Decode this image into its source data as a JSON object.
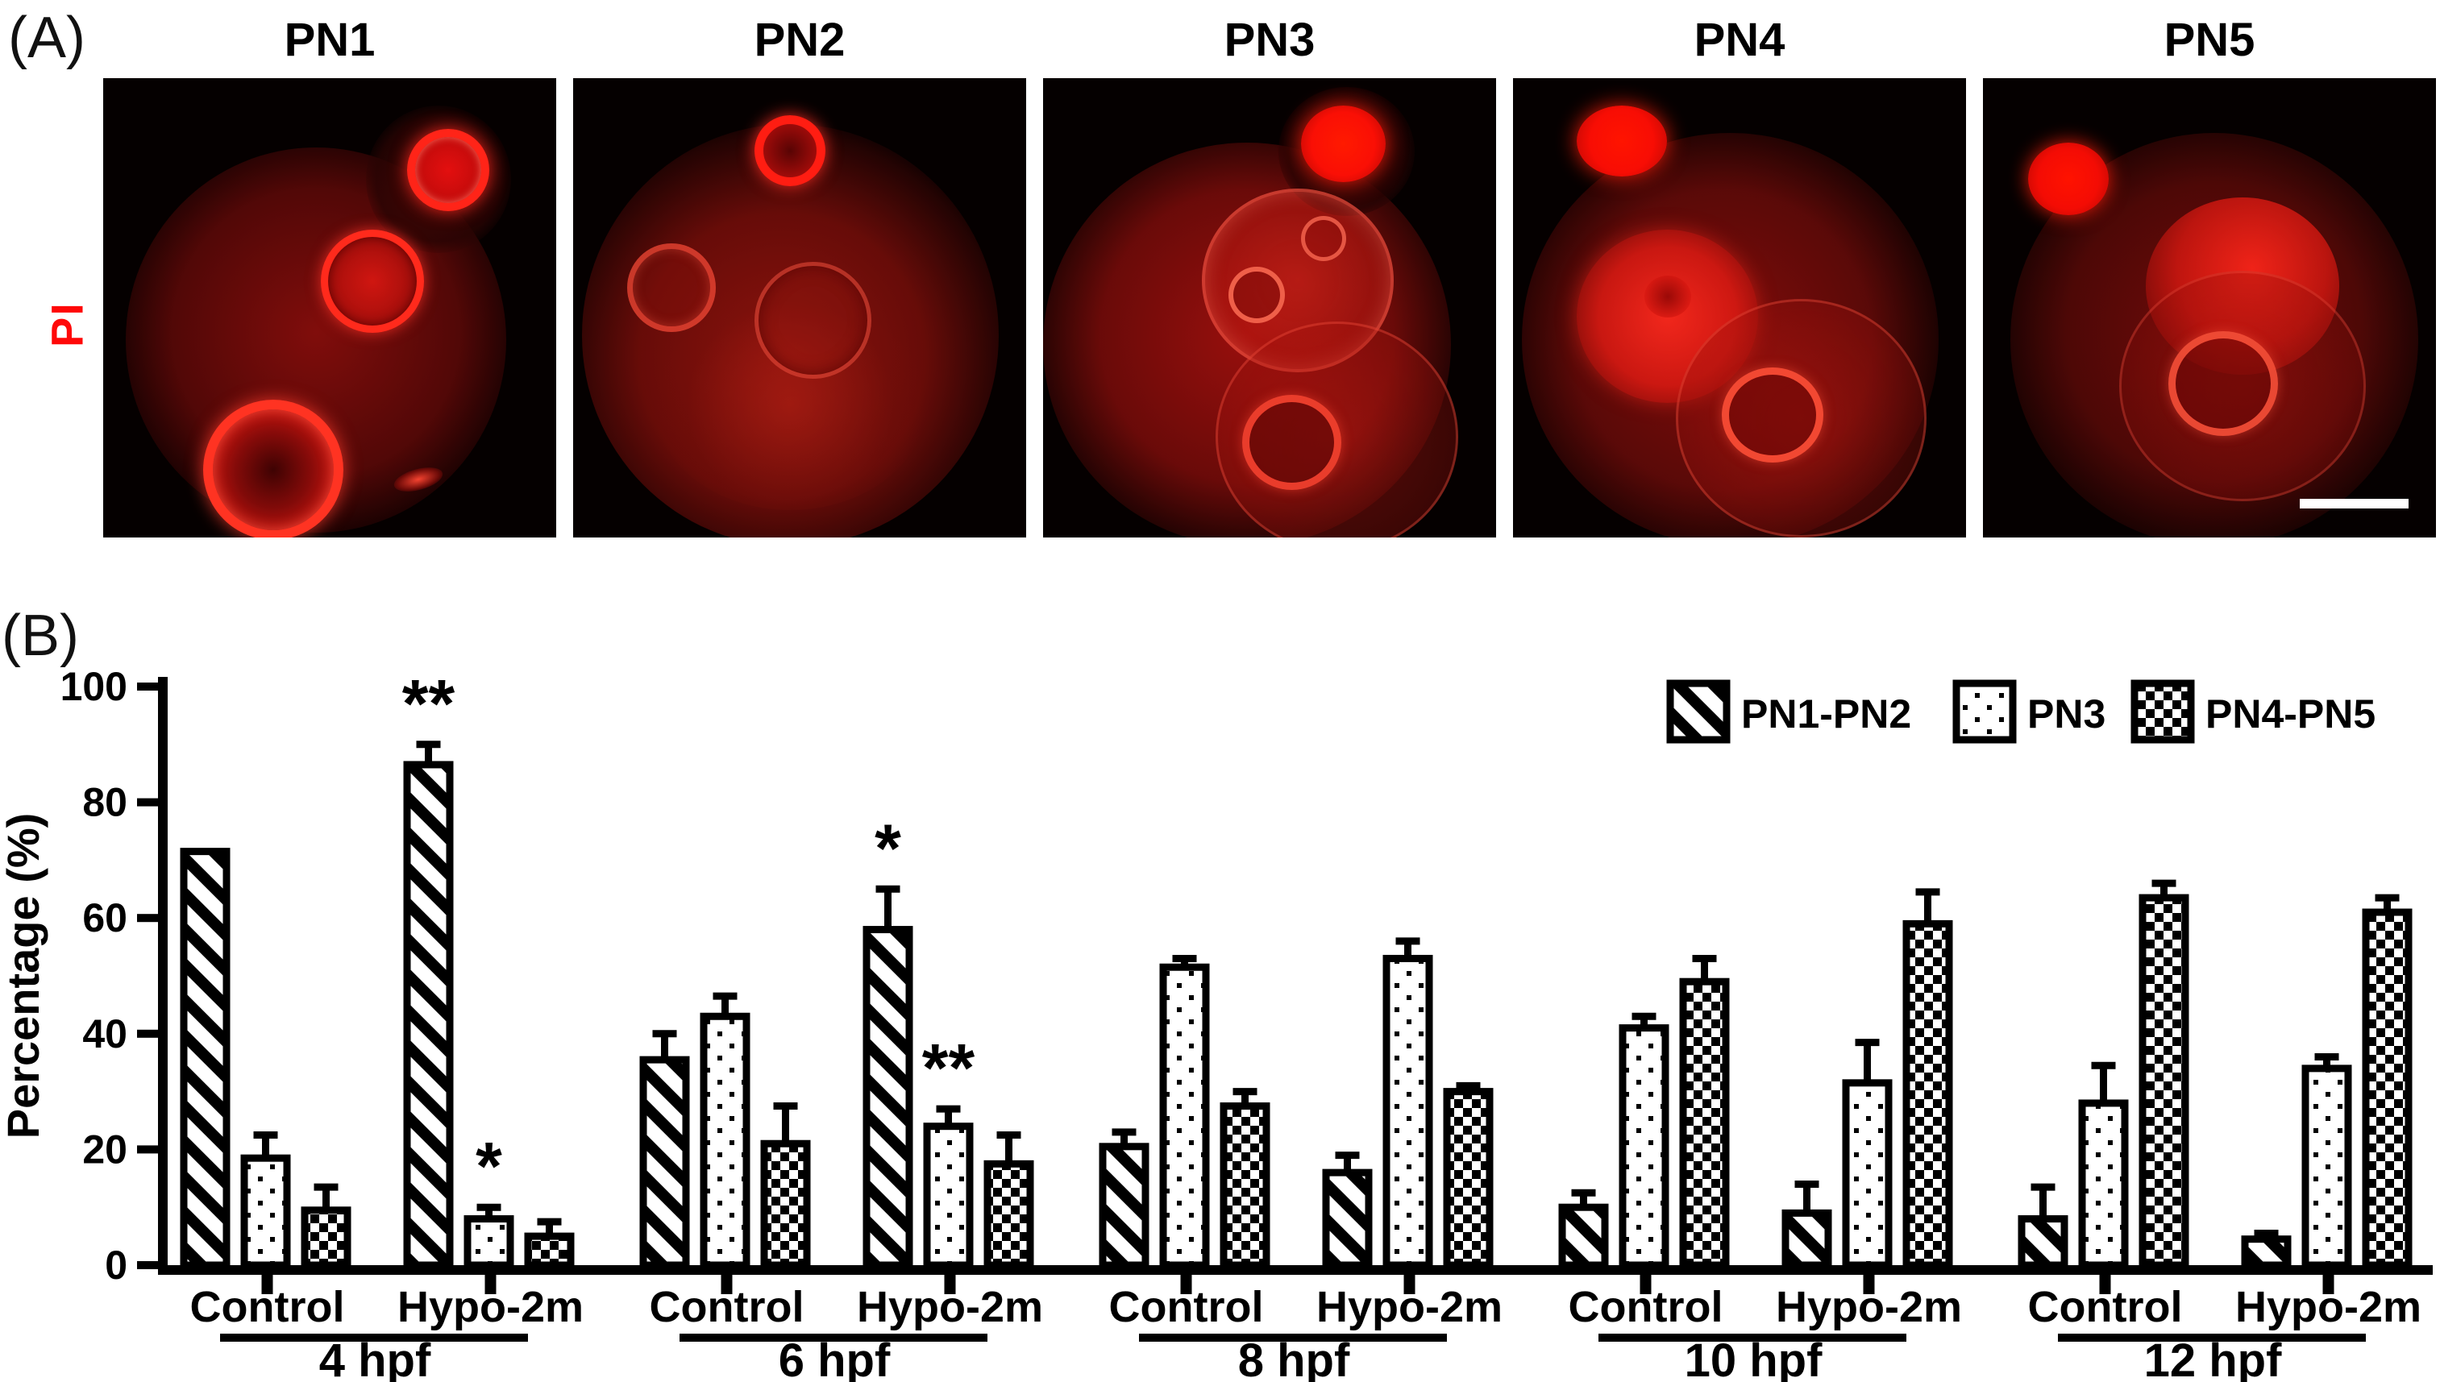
{
  "figure": {
    "panel_a_label": "(A)",
    "panel_b_label": "(B)",
    "stain_label": "PI",
    "micrographs": [
      {
        "title": "PN1"
      },
      {
        "title": "PN2"
      },
      {
        "title": "PN3"
      },
      {
        "title": "PN4"
      },
      {
        "title": "PN5"
      }
    ],
    "fluorescence_color": "#ff1414",
    "scale_bar_color": "#ffffff"
  },
  "chart_data": {
    "type": "bar",
    "title": "",
    "xlabel": "",
    "ylabel": "Percentage (%)",
    "ylim": [
      0,
      100
    ],
    "yticks": [
      0,
      20,
      40,
      60,
      80,
      100
    ],
    "grid": false,
    "legend_position": "top-right",
    "series_names": [
      "PN1-PN2",
      "PN3",
      "PN4-PN5"
    ],
    "series_patterns": [
      "diagonal-hatch",
      "dots",
      "checkerboard"
    ],
    "bar_color": "#000000",
    "groups": [
      {
        "label": "4 hpf",
        "conditions": [
          {
            "label": "Control",
            "values": [
              71.5,
              18.5,
              9.5
            ],
            "errors": [
              0,
              4,
              4
            ],
            "sig": [
              "",
              "",
              ""
            ]
          },
          {
            "label": "Hypo-2m",
            "values": [
              86.5,
              8,
              5
            ],
            "errors": [
              3.5,
              2,
              2.5
            ],
            "sig": [
              "**",
              "*",
              ""
            ]
          }
        ]
      },
      {
        "label": "6 hpf",
        "conditions": [
          {
            "label": "Control",
            "values": [
              35.5,
              43,
              21
            ],
            "errors": [
              4.5,
              3.5,
              6.5
            ],
            "sig": [
              "",
              "",
              ""
            ]
          },
          {
            "label": "Hypo-2m",
            "values": [
              58,
              24,
              17.5
            ],
            "errors": [
              7,
              3,
              5
            ],
            "sig": [
              "*",
              "**",
              ""
            ]
          }
        ]
      },
      {
        "label": "8 hpf",
        "conditions": [
          {
            "label": "Control",
            "values": [
              20.5,
              51.5,
              27.5
            ],
            "errors": [
              2.5,
              1.5,
              2.5
            ],
            "sig": [
              "",
              "",
              ""
            ]
          },
          {
            "label": "Hypo-2m",
            "values": [
              16,
              53,
              30
            ],
            "errors": [
              3,
              3,
              1
            ],
            "sig": [
              "",
              "",
              ""
            ]
          }
        ]
      },
      {
        "label": "10 hpf",
        "conditions": [
          {
            "label": "Control",
            "values": [
              10,
              41,
              49
            ],
            "errors": [
              2.5,
              2,
              4
            ],
            "sig": [
              "",
              "",
              ""
            ]
          },
          {
            "label": "Hypo-2m",
            "values": [
              9,
              31.5,
              59
            ],
            "errors": [
              5,
              7,
              5.5
            ],
            "sig": [
              "",
              "",
              ""
            ]
          }
        ]
      },
      {
        "label": "12 hpf",
        "conditions": [
          {
            "label": "Control",
            "values": [
              8,
              28,
              63.5
            ],
            "errors": [
              5.5,
              6.5,
              2.5
            ],
            "sig": [
              "",
              "",
              ""
            ]
          },
          {
            "label": "Hypo-2m",
            "values": [
              4.5,
              34,
              61
            ],
            "errors": [
              1,
              2,
              2.5
            ],
            "sig": [
              "",
              "",
              ""
            ]
          }
        ]
      }
    ]
  }
}
